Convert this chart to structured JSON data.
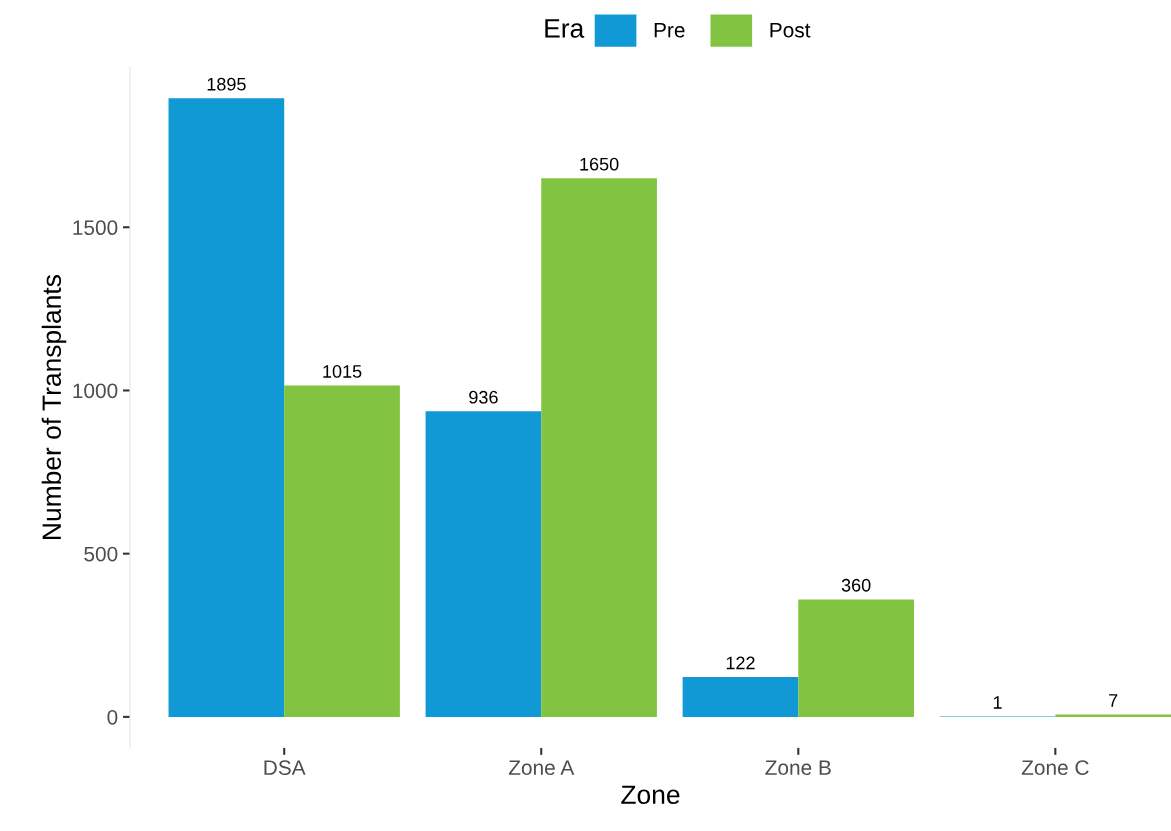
{
  "chart_data": {
    "type": "bar",
    "xlabel": "Zone",
    "ylabel": "Number of Transplants",
    "legend_title": "Era",
    "categories": [
      "DSA",
      "Zone A",
      "Zone B",
      "Zone C"
    ],
    "series": [
      {
        "name": "Pre",
        "color": "#1199d6",
        "values": [
          1895,
          936,
          122,
          1
        ]
      },
      {
        "name": "Post",
        "color": "#82c341",
        "values": [
          1015,
          1650,
          360,
          7
        ]
      }
    ],
    "ylim": [
      -95,
      1990
    ],
    "yticks": [
      0,
      500,
      1000,
      1500
    ],
    "data_labels": true,
    "grid": false,
    "legend": "top"
  }
}
